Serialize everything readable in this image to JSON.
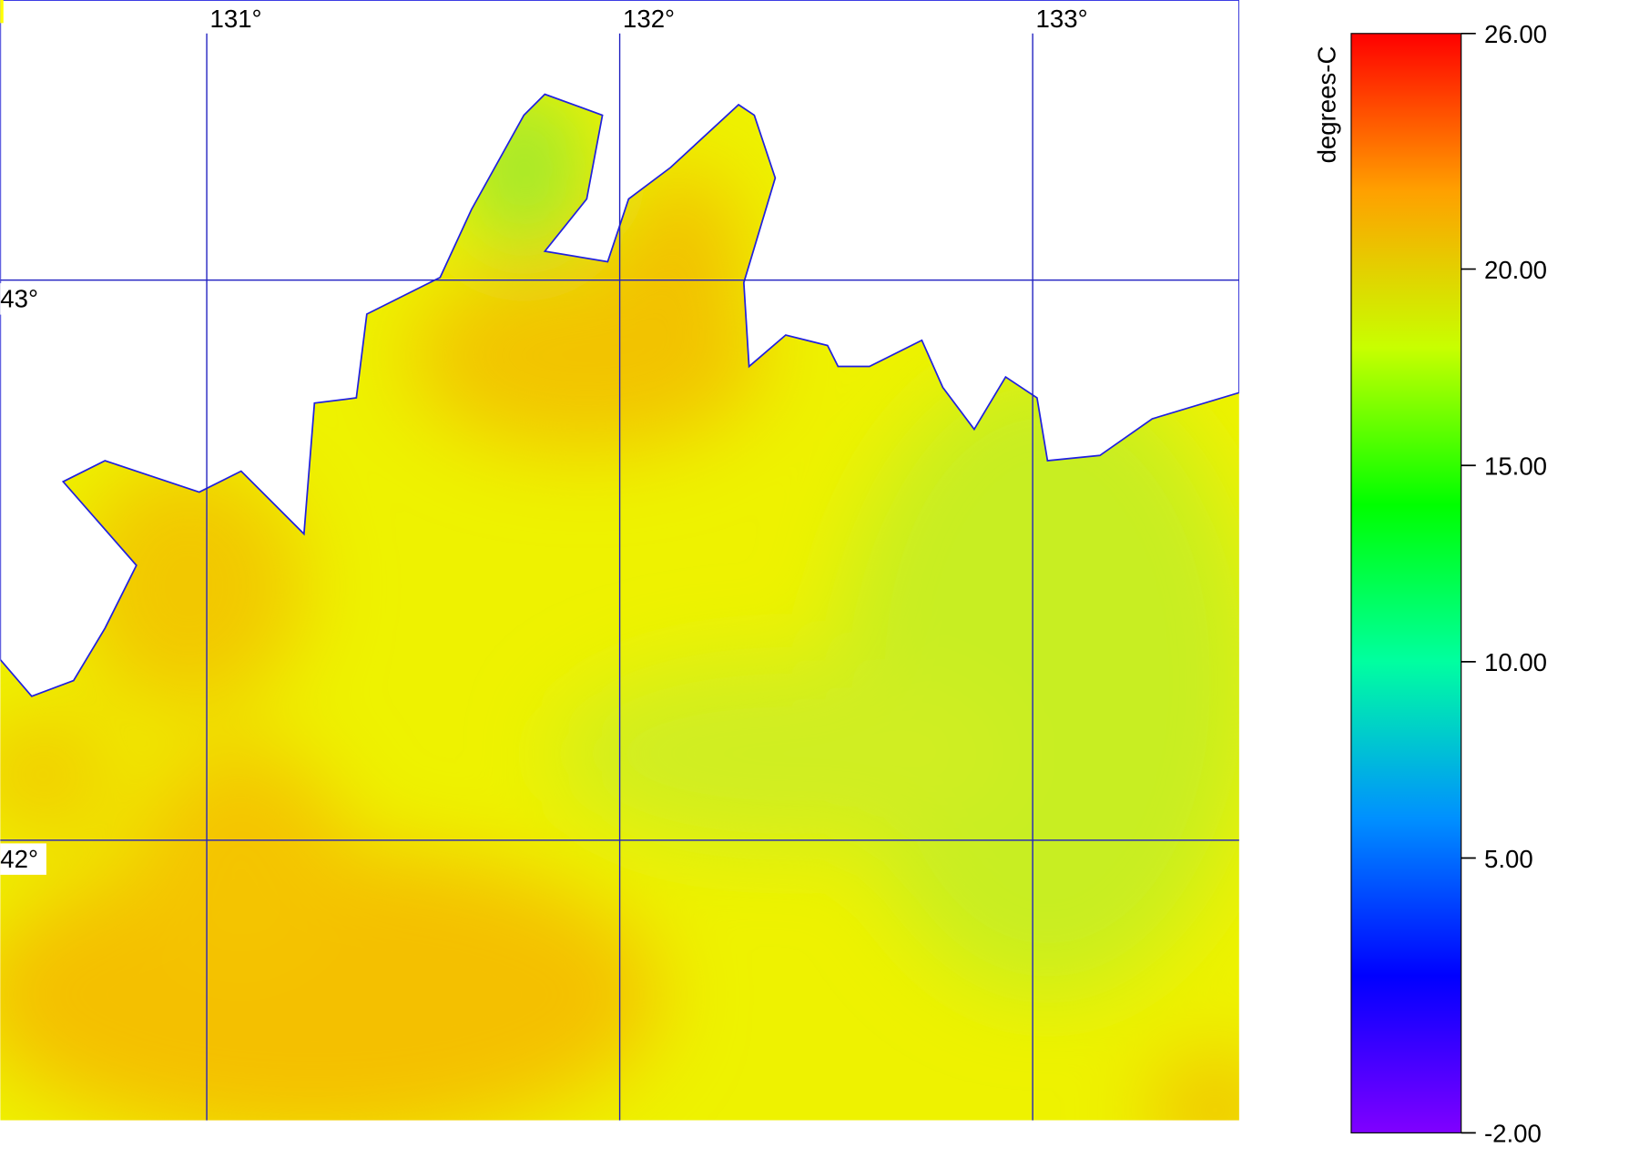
{
  "map": {
    "lon_range": [
      130.5,
      133.5
    ],
    "lat_range": [
      43.5,
      41.5
    ],
    "lon_lines": [
      {
        "value": 131,
        "label": "131°"
      },
      {
        "value": 132,
        "label": "132°"
      },
      {
        "value": 133,
        "label": "133°"
      }
    ],
    "lat_lines": [
      {
        "value": 43,
        "label": "43°"
      },
      {
        "value": 42,
        "label": "42°"
      }
    ],
    "grid_color": "#2020c0",
    "colorbar": {
      "title": "degrees-C",
      "range": [
        -2,
        26
      ],
      "colors": [
        "#8000ff",
        "#0000ff",
        "#0090ff",
        "#00ffa0",
        "#00ff00",
        "#c8ff00",
        "#ffa000",
        "#ff0000"
      ],
      "ticks": [
        {
          "value": 26,
          "label": "26.00"
        },
        {
          "value": 20,
          "label": "20.00"
        },
        {
          "value": 15,
          "label": "15.00"
        },
        {
          "value": 10,
          "label": "10.00"
        },
        {
          "value": 5,
          "label": "5.00"
        },
        {
          "value": -2,
          "label": "-2.00"
        }
      ]
    }
  }
}
